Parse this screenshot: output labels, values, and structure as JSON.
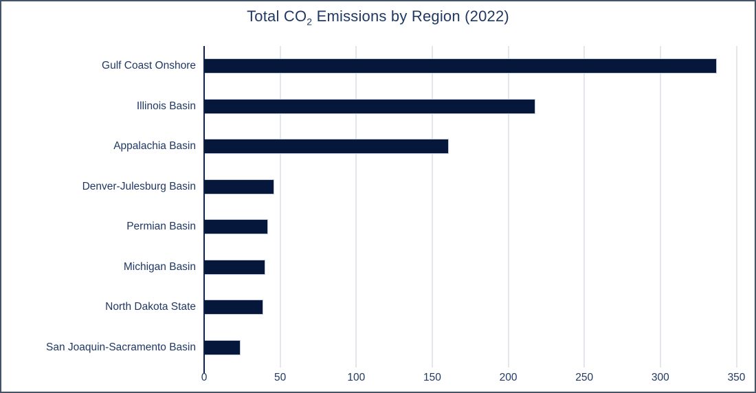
{
  "chart_data": {
    "type": "bar",
    "orientation": "horizontal",
    "title": "Total CO₂ Emissions by Region (2022)",
    "title_parts": {
      "prefix": "Total CO",
      "sub": "2",
      "suffix": " Emissions by Region (2022)"
    },
    "categories": [
      "Gulf Coast Onshore",
      "Illinois Basin",
      "Appalachia Basin",
      "Denver-Julesburg Basin",
      "Permian Basin",
      "Michigan Basin",
      "North Dakota State",
      "San Joaquin-Sacramento Basin"
    ],
    "values": [
      337,
      218,
      161,
      46,
      42,
      40,
      39,
      24
    ],
    "xlabel": "",
    "ylabel": "",
    "x_ticks": [
      0,
      50,
      100,
      150,
      200,
      250,
      300,
      350
    ],
    "xlim": [
      0,
      357
    ],
    "grid": "vertical-gridlines-on",
    "legend": "none",
    "colors": {
      "bar_fill": "#05173a",
      "bar_border": "#c2c9d8",
      "axis_line": "#0b2244",
      "gridline": "#e3e7ec",
      "text": "#1f3864",
      "outer_border": "#44546a",
      "background": "#ffffff"
    }
  }
}
